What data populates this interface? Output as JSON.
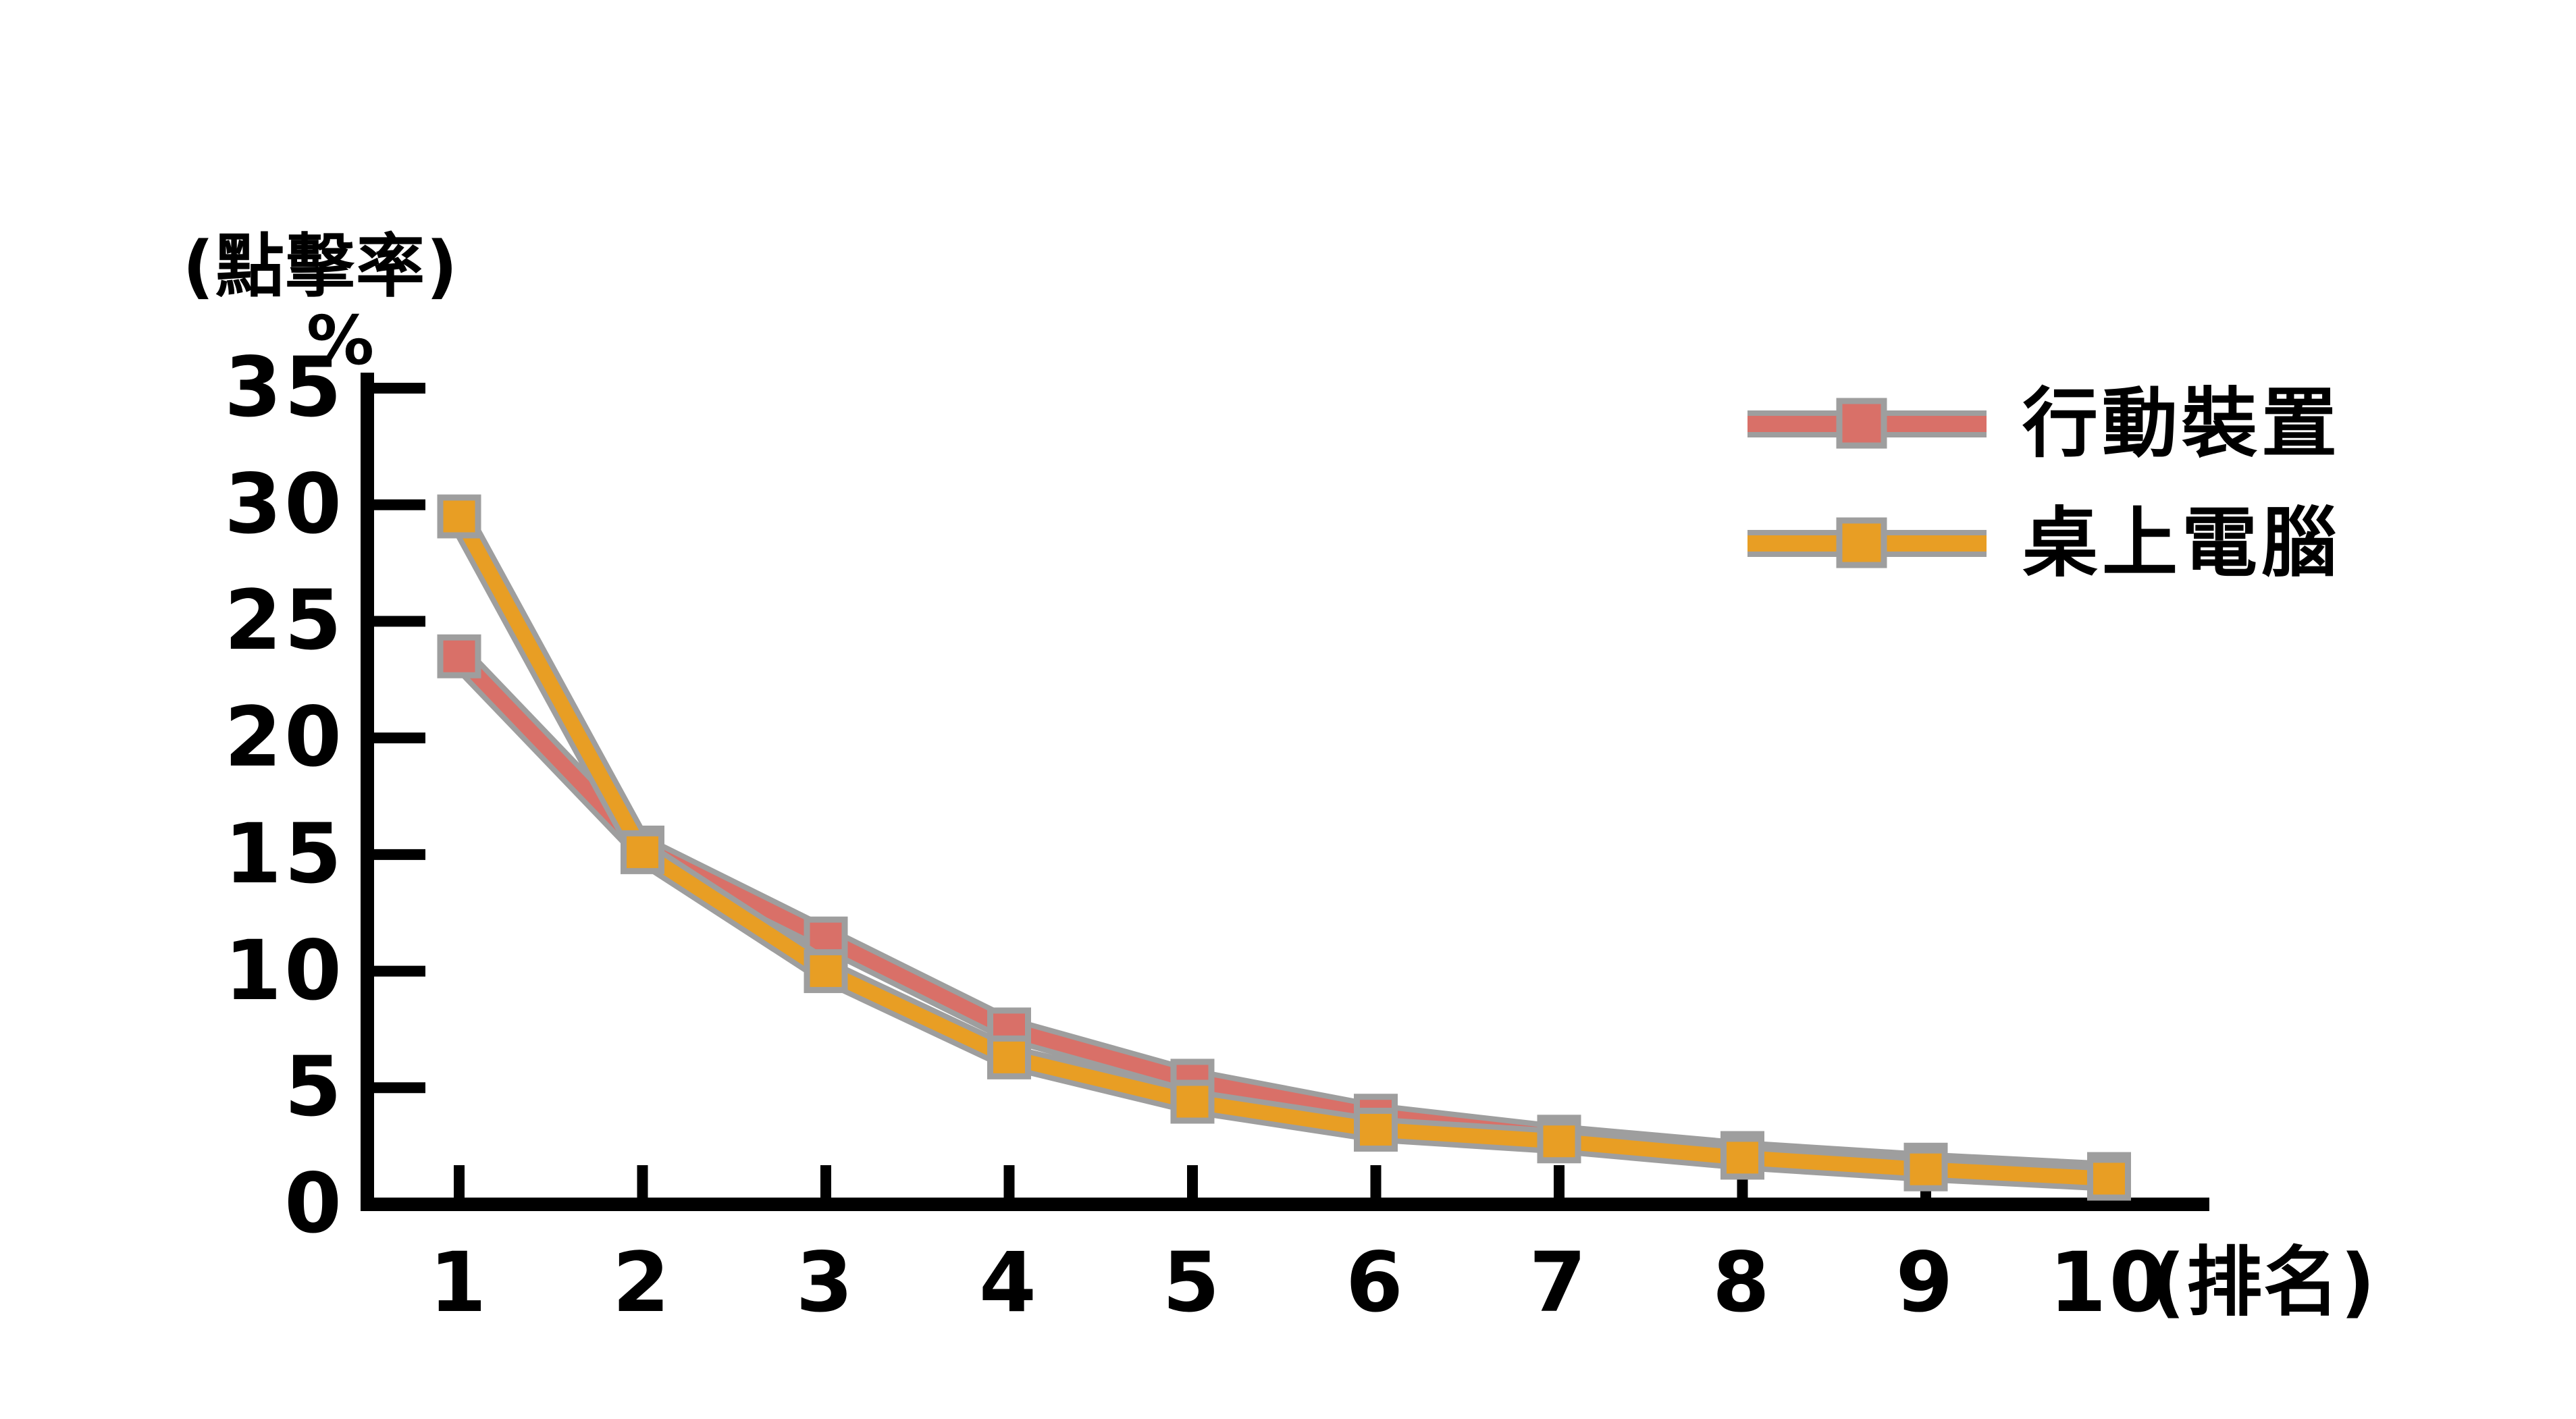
{
  "page": {
    "background": "#ffffff"
  },
  "chart_data": {
    "type": "line",
    "title": "",
    "ylabel": "(點擊率)",
    "ylabel_unit": "%",
    "xlabel": "(排名)",
    "categories": [
      1,
      2,
      3,
      4,
      5,
      6,
      7,
      8,
      9,
      10
    ],
    "yticks": [
      0,
      5,
      10,
      15,
      20,
      25,
      30,
      35
    ],
    "ylim": [
      0,
      35
    ],
    "xlim": [
      1,
      10
    ],
    "grid": false,
    "legend_position": "top-right",
    "axis_color": "#000000",
    "marker_outline_color": "#9e9e9e",
    "series": [
      {
        "name": "行動裝置",
        "color": "#d97068",
        "marker": "square",
        "values": [
          23.5,
          15.3,
          11.4,
          7.5,
          5.3,
          3.8,
          2.9,
          2.2,
          1.7,
          1.3
        ]
      },
      {
        "name": "桌上電腦",
        "color": "#e89e24",
        "marker": "square",
        "values": [
          29.5,
          15.1,
          10.0,
          6.3,
          4.4,
          3.2,
          2.7,
          2.0,
          1.5,
          1.1
        ]
      }
    ]
  }
}
